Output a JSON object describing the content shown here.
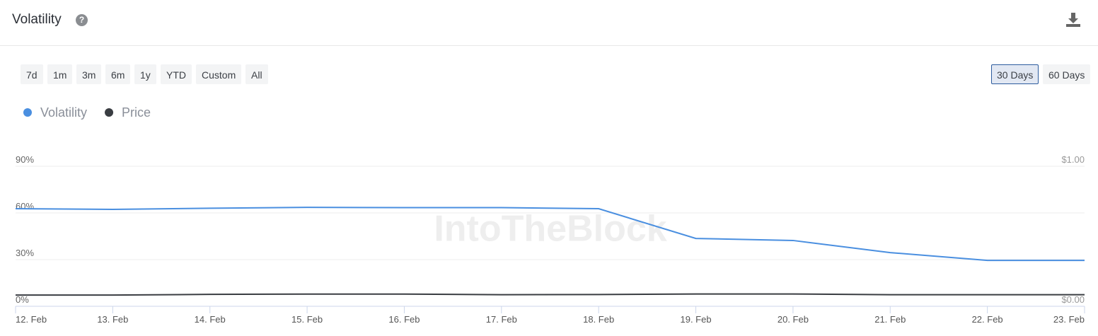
{
  "header": {
    "title": "Volatility"
  },
  "controls": {
    "ranges": [
      "7d",
      "1m",
      "3m",
      "6m",
      "1y",
      "YTD",
      "Custom",
      "All"
    ],
    "windows": [
      "30 Days",
      "60 Days"
    ],
    "active_window": "30 Days"
  },
  "chart_data": {
    "type": "line",
    "watermark": "IntoTheBlock",
    "categories": [
      "12. Feb",
      "13. Feb",
      "14. Feb",
      "15. Feb",
      "16. Feb",
      "17. Feb",
      "18. Feb",
      "19. Feb",
      "20. Feb",
      "21. Feb",
      "22. Feb",
      "23. Feb"
    ],
    "series": [
      {
        "name": "Volatility",
        "color": "#4a8fe0",
        "values": [
          62.7,
          62.3,
          63,
          63.6,
          63.4,
          63.4,
          62.7,
          43.6,
          42.3,
          34.5,
          29.5,
          29.5
        ]
      },
      {
        "name": "Price",
        "color": "#3a3d42",
        "axis": "y2",
        "values": [
          0.08,
          0.08,
          0.085,
          0.087,
          0.087,
          0.083,
          0.084,
          0.088,
          0.088,
          0.083,
          0.083,
          0.083
        ]
      }
    ],
    "ylim": [
      0,
      90
    ],
    "yticks": [
      {
        "value": 0,
        "label": "0%"
      },
      {
        "value": 30,
        "label": "30%"
      },
      {
        "value": 60,
        "label": "60%"
      },
      {
        "value": 90,
        "label": "90%"
      }
    ],
    "y2lim": [
      0,
      1
    ],
    "y2ticks": [
      {
        "value": 0,
        "label": "$0.00"
      },
      {
        "value": 1,
        "label": "$1.00"
      }
    ],
    "grid": true,
    "legend": "top-left"
  }
}
